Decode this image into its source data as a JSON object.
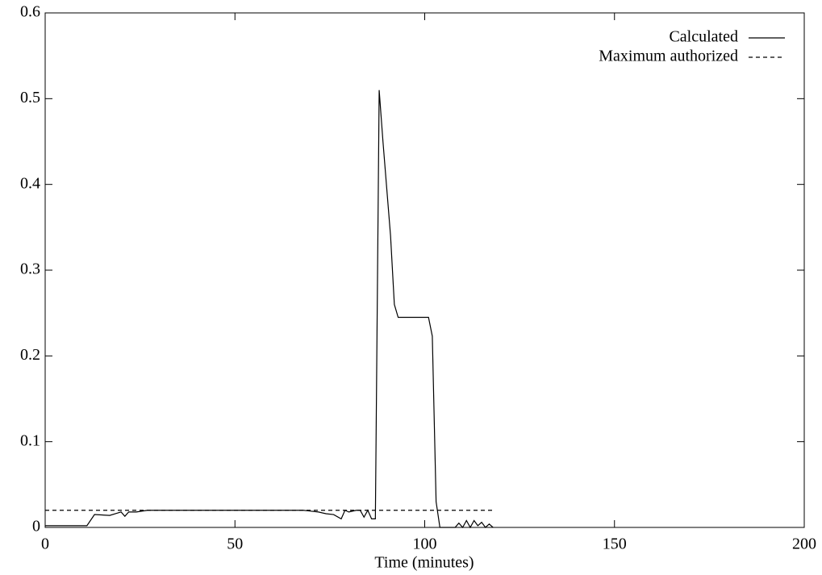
{
  "chart_data": {
    "type": "line",
    "x_label": "Time (minutes)",
    "xlim": [
      0,
      200
    ],
    "xticks": [
      0,
      50,
      100,
      150,
      200
    ],
    "ylim": [
      0,
      0.6
    ],
    "yticks": [
      0,
      0.1,
      0.2,
      0.3,
      0.4,
      0.5,
      0.6
    ],
    "legend": "top-right",
    "series": [
      {
        "name": "Calculated",
        "color": "#000000",
        "dash": false,
        "x": [
          0,
          11,
          13,
          17,
          20,
          21,
          22,
          24,
          27,
          68,
          72,
          74,
          76,
          78,
          79,
          80,
          82,
          83,
          84,
          85,
          86,
          87,
          88,
          89,
          91,
          92,
          93,
          101,
          102,
          103,
          104,
          108,
          109,
          110,
          111,
          112,
          113,
          114,
          115,
          116,
          117,
          118
        ],
        "values": [
          0.002,
          0.002,
          0.015,
          0.014,
          0.018,
          0.013,
          0.018,
          0.018,
          0.02,
          0.02,
          0.018,
          0.016,
          0.015,
          0.01,
          0.02,
          0.018,
          0.02,
          0.02,
          0.012,
          0.02,
          0.01,
          0.01,
          0.51,
          0.45,
          0.34,
          0.26,
          0.245,
          0.245,
          0.223,
          0.03,
          0,
          0,
          0.005,
          0,
          0.008,
          0,
          0.008,
          0.002,
          0.006,
          0,
          0.004,
          0
        ]
      },
      {
        "name": "Maximum authorized",
        "color": "#000000",
        "dash": true,
        "x": [
          0,
          118
        ],
        "values": [
          0.02,
          0.02
        ]
      }
    ]
  }
}
